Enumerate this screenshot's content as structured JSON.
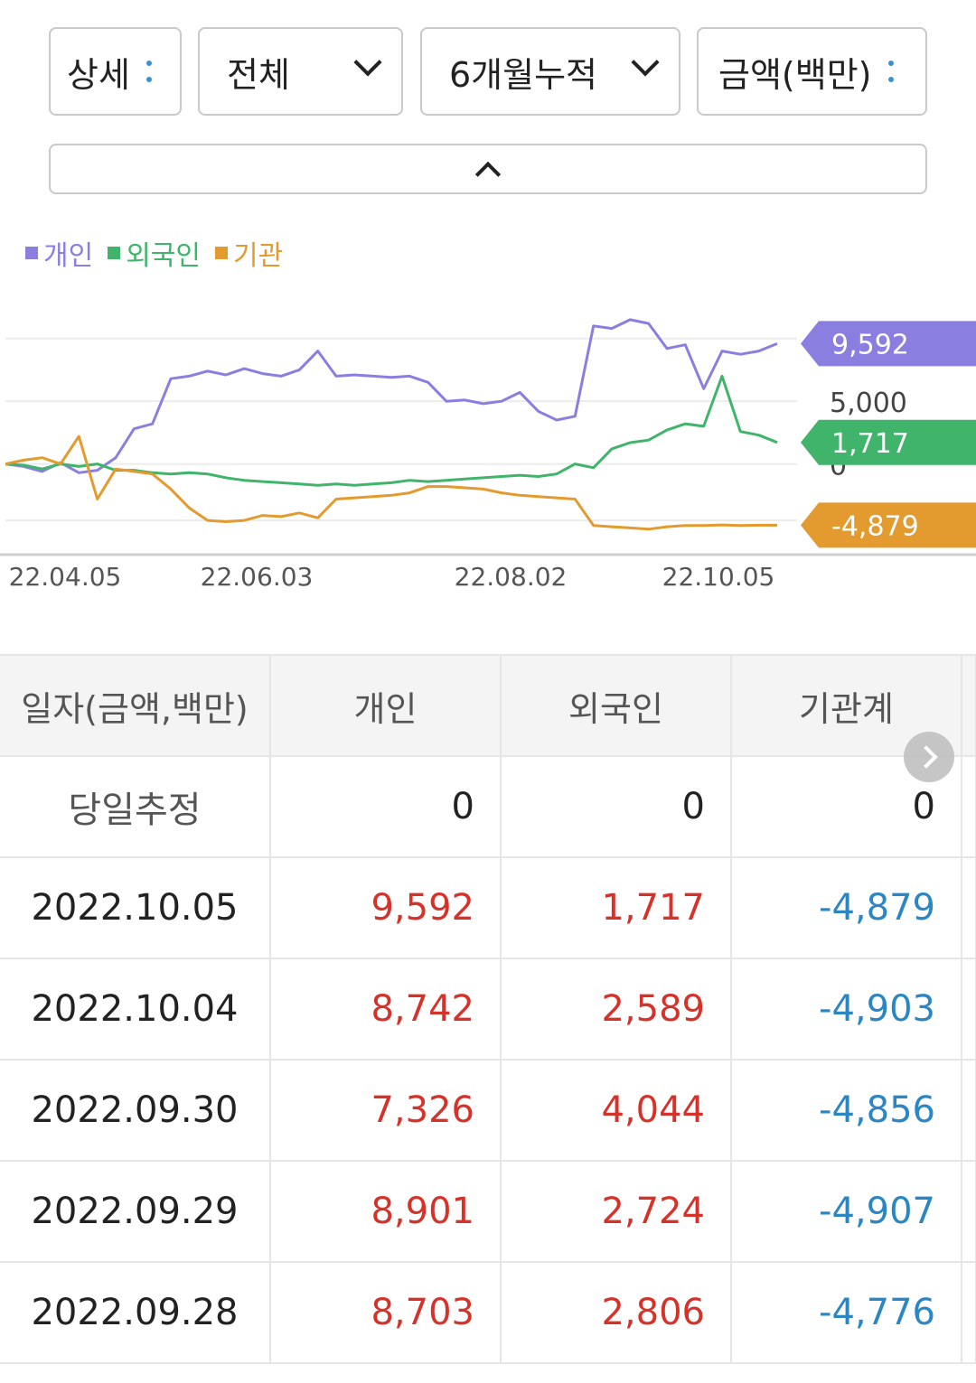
{
  "filters": {
    "view": "상세",
    "scope": "전체",
    "period": "6개월누적",
    "unit": "금액(백만)"
  },
  "legend": [
    {
      "label": "개인",
      "color": "#8a7fe0"
    },
    {
      "label": "외국인",
      "color": "#3fb46a"
    },
    {
      "label": "기관",
      "color": "#e39a2f"
    }
  ],
  "chart_data": {
    "type": "line",
    "x_ticks": [
      "22.04.05",
      "22.06.03",
      "22.08.02",
      "22.10.05"
    ],
    "y_ticks": [
      5000,
      0
    ],
    "y_tick_labels": [
      "5,000",
      "0"
    ],
    "ylim": [
      -5500,
      12500
    ],
    "series": [
      {
        "name": "개인",
        "color": "#8a7fe0",
        "end_label": "9,592",
        "values": [
          0,
          -200,
          -600,
          100,
          -700,
          -500,
          500,
          2800,
          3200,
          6800,
          7000,
          7400,
          7100,
          7600,
          7200,
          7000,
          7500,
          9000,
          7000,
          7100,
          7000,
          6900,
          7000,
          6500,
          5000,
          5100,
          4800,
          5000,
          5700,
          4200,
          3500,
          3800,
          11000,
          10800,
          11500,
          11200,
          9200,
          9500,
          6000,
          9000,
          8742,
          9000,
          9592
        ]
      },
      {
        "name": "외국인",
        "color": "#3fb46a",
        "end_label": "1,717",
        "values": [
          0,
          -100,
          -400,
          0,
          -200,
          0,
          -500,
          -500,
          -700,
          -800,
          -700,
          -800,
          -1100,
          -1300,
          -1400,
          -1500,
          -1600,
          -1700,
          -1600,
          -1700,
          -1600,
          -1500,
          -1300,
          -1400,
          -1300,
          -1200,
          -1100,
          -1000,
          -900,
          -1000,
          -800,
          0,
          -300,
          1200,
          1700,
          1900,
          2700,
          3200,
          3000,
          7000,
          2589,
          2300,
          1717
        ]
      },
      {
        "name": "기관",
        "color": "#e39a2f",
        "end_label": "-4,879",
        "values": [
          0,
          300,
          500,
          0,
          2200,
          -2800,
          -400,
          -600,
          -800,
          -2000,
          -3500,
          -4500,
          -4600,
          -4500,
          -4100,
          -4200,
          -3900,
          -4300,
          -2800,
          -2700,
          -2600,
          -2500,
          -2300,
          -1800,
          -1800,
          -1900,
          -2000,
          -2300,
          -2500,
          -2600,
          -2700,
          -2800,
          -4900,
          -5000,
          -5100,
          -5200,
          -5000,
          -4900,
          -4900,
          -4856,
          -4903,
          -4879,
          -4879
        ]
      }
    ]
  },
  "table": {
    "headers": [
      "일자(금액,백만)",
      "개인",
      "외국인",
      "기관계"
    ],
    "estimate_row": {
      "label": "당일추정",
      "values": [
        "0",
        "0",
        "0"
      ]
    },
    "rows": [
      {
        "date": "2022.10.05",
        "individual": "9,592",
        "foreign": "1,717",
        "institution": "-4,879"
      },
      {
        "date": "2022.10.04",
        "individual": "8,742",
        "foreign": "2,589",
        "institution": "-4,903"
      },
      {
        "date": "2022.09.30",
        "individual": "7,326",
        "foreign": "4,044",
        "institution": "-4,856"
      },
      {
        "date": "2022.09.29",
        "individual": "8,901",
        "foreign": "2,724",
        "institution": "-4,907"
      },
      {
        "date": "2022.09.28",
        "individual": "8,703",
        "foreign": "2,806",
        "institution": "-4,776"
      }
    ]
  }
}
